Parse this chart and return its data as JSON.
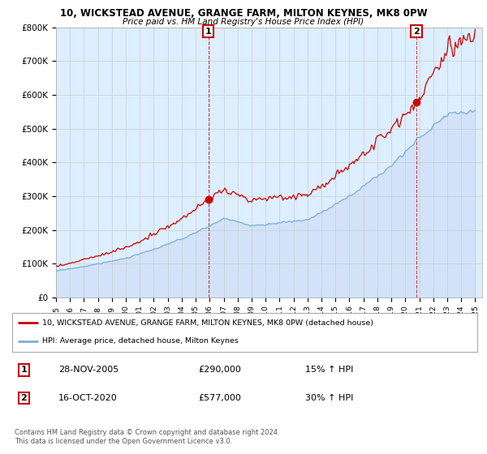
{
  "title_line1": "10, WICKSTEAD AVENUE, GRANGE FARM, MILTON KEYNES, MK8 0PW",
  "title_line2": "Price paid vs. HM Land Registry's House Price Index (HPI)",
  "ylabel_ticks": [
    "£0",
    "£100K",
    "£200K",
    "£300K",
    "£400K",
    "£500K",
    "£600K",
    "£700K",
    "£800K"
  ],
  "ytick_values": [
    0,
    100000,
    200000,
    300000,
    400000,
    500000,
    600000,
    700000,
    800000
  ],
  "ylim": [
    0,
    800000
  ],
  "xlim_start": 1995.0,
  "xlim_end": 2025.5,
  "hpi_color": "#7bafd4",
  "price_color": "#cc0000",
  "chart_bg": "#ddeeff",
  "sale1_x": 2005.91,
  "sale1_y": 290000,
  "sale2_x": 2020.79,
  "sale2_y": 577000,
  "annotation1_label": "1",
  "annotation2_label": "2",
  "legend_line1": "10, WICKSTEAD AVENUE, GRANGE FARM, MILTON KEYNES, MK8 0PW (detached house)",
  "legend_line2": "HPI: Average price, detached house, Milton Keynes",
  "table_row1": [
    "1",
    "28-NOV-2005",
    "£290,000",
    "15% ↑ HPI"
  ],
  "table_row2": [
    "2",
    "16-OCT-2020",
    "£577,000",
    "30% ↑ HPI"
  ],
  "footnote": "Contains HM Land Registry data © Crown copyright and database right 2024.\nThis data is licensed under the Open Government Licence v3.0.",
  "background_color": "#ffffff",
  "grid_color": "#cccccc",
  "xtick_years": [
    1995,
    1996,
    1997,
    1998,
    1999,
    2000,
    2001,
    2002,
    2003,
    2004,
    2005,
    2006,
    2007,
    2008,
    2009,
    2010,
    2011,
    2012,
    2013,
    2014,
    2015,
    2016,
    2017,
    2018,
    2019,
    2020,
    2021,
    2022,
    2023,
    2024,
    2025
  ]
}
